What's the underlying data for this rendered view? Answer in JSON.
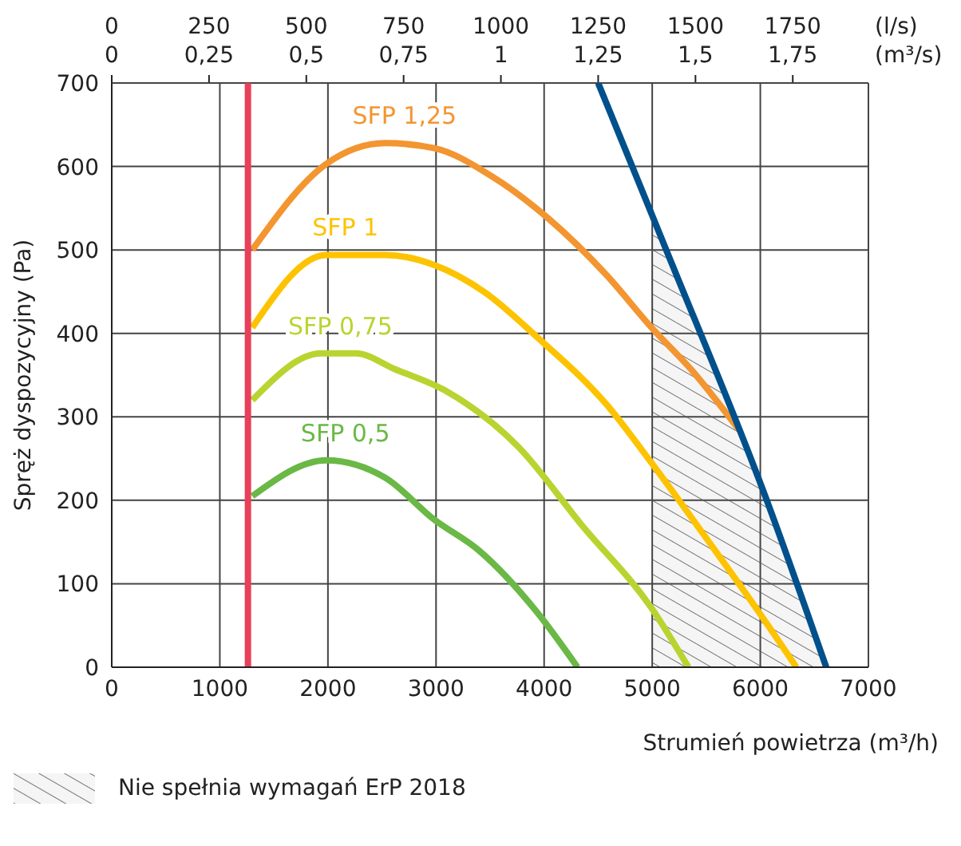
{
  "chart_data": {
    "type": "line",
    "xlabel": "Strumień powietrza (m³/h)",
    "ylabel": "Spręż dyspozycyjny (Pa)",
    "x2label": "(l/s)",
    "xlim": [
      0,
      7000
    ],
    "xticks": [
      0,
      1000,
      2000,
      3000,
      4000,
      5000,
      6000,
      7000
    ],
    "ylim": [
      0,
      700
    ],
    "yticks": [
      0,
      100,
      200,
      300,
      400,
      500,
      600,
      700
    ],
    "x2lim": [
      0,
      1944.4
    ],
    "x2ticks": [
      0,
      250,
      500,
      750,
      1000,
      1250,
      1500,
      1750
    ],
    "annotations": [
      "0",
      "0,25",
      "0,5",
      "0,75",
      "1",
      "1,25",
      "1,5",
      "1,75",
      "(m³/s)"
    ],
    "grid": true,
    "legend": "bottom left",
    "marker": "none",
    "line_style": "solid",
    "series": [
      {
        "type": "area",
        "name": "Nie spełnia wymagań ErP 2018",
        "color": "#555555",
        "x": [
          5000,
          5130,
          6060,
          6610
        ],
        "values": [
          550,
          500,
          200,
          0
        ]
      },
      {
        "name": "SFP 1,25",
        "color": "#f39530",
        "x": [
          1300,
          1984,
          2531,
          2982,
          3530,
          4036,
          4583,
          4993,
          5358,
          5800
        ],
        "values": [
          500,
          603,
          628,
          622,
          587,
          538,
          469,
          407,
          357,
          285
        ]
      },
      {
        "name": "SFP 1",
        "color": "#fdc300",
        "x": [
          1300,
          1984,
          2531,
          2982,
          3443,
          3940,
          4583,
          4993,
          5581,
          5992,
          6334
        ],
        "values": [
          407,
          494,
          494,
          482,
          450,
          395,
          314,
          245,
          140,
          65,
          0
        ]
      },
      {
        "name": "SFP 0,75",
        "color": "#b9d430",
        "x": [
          1300,
          1938,
          2257,
          2622,
          3078,
          3762,
          4350,
          4993,
          5335
        ],
        "values": [
          320,
          376,
          376,
          357,
          332,
          264,
          170,
          71,
          0
        ]
      },
      {
        "name": "SFP 0,5",
        "color": "#6ab845",
        "x": [
          1300,
          1984,
          2531,
          2982,
          3396,
          3940,
          4309
        ],
        "values": [
          205,
          248,
          227,
          177,
          140,
          65,
          0
        ]
      },
      {
        "color": "#e8405a",
        "x": [
          1260,
          1260
        ],
        "values": [
          0,
          700
        ]
      },
      {
        "color": "#00508c",
        "x": [
          4500,
          5130,
          6060,
          6610
        ],
        "values": [
          700,
          500,
          200,
          0
        ]
      }
    ]
  }
}
